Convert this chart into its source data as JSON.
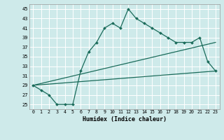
{
  "xlabel": "Humidex (Indice chaleur)",
  "ylabel": "",
  "background_color": "#ceeaea",
  "grid_color": "#b0d8d8",
  "line_color": "#1a6b5a",
  "xlim": [
    -0.5,
    23.5
  ],
  "ylim": [
    24,
    46
  ],
  "yticks": [
    25,
    27,
    29,
    31,
    33,
    35,
    37,
    39,
    41,
    43,
    45
  ],
  "xticks": [
    0,
    1,
    2,
    3,
    4,
    5,
    6,
    7,
    8,
    9,
    10,
    11,
    12,
    13,
    14,
    15,
    16,
    17,
    18,
    19,
    20,
    21,
    22,
    23
  ],
  "series1_x": [
    0,
    1,
    2,
    3,
    4,
    5,
    6,
    7,
    8,
    9,
    10,
    11,
    12,
    13,
    14,
    15,
    16,
    17,
    18,
    19,
    20,
    21,
    22,
    23
  ],
  "series1_y": [
    29,
    28,
    27,
    25,
    25,
    25,
    32,
    36,
    38,
    41,
    42,
    41,
    45,
    43,
    42,
    41,
    40,
    39,
    38,
    38,
    38,
    39,
    34,
    32
  ],
  "line2_x": [
    0,
    23
  ],
  "line2_y": [
    29,
    32
  ],
  "line3_x": [
    0,
    23
  ],
  "line3_y": [
    29,
    38
  ]
}
